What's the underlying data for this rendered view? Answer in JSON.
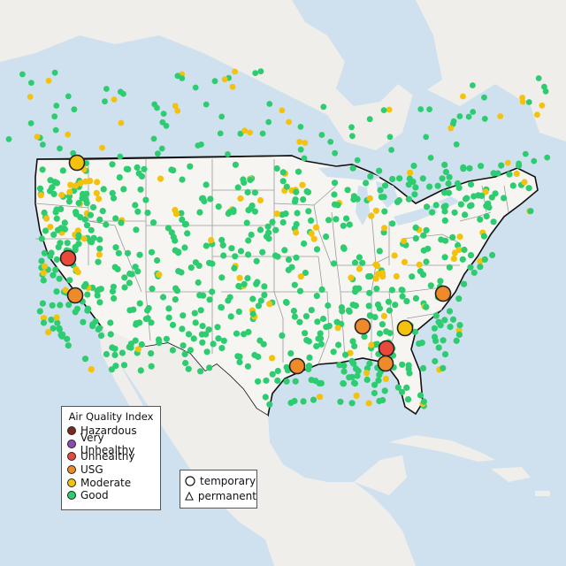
{
  "legend": {
    "title": "Air Quality Index",
    "categories": [
      {
        "label": "Hazardous",
        "color": "#7b2a1e"
      },
      {
        "label": "Very Unhealthy",
        "color": "#8e4bb0"
      },
      {
        "label": "Unhealthy",
        "color": "#e8493a"
      },
      {
        "label": "USG",
        "color": "#ef8a2a"
      },
      {
        "label": "Moderate",
        "color": "#f4c20d"
      },
      {
        "label": "Good",
        "color": "#2ecc71"
      }
    ]
  },
  "site_types": [
    {
      "label": "temporary",
      "icon": "circle-icon"
    },
    {
      "label": "permanent",
      "icon": "triangle-icon"
    }
  ],
  "colors": {
    "water": "#cfe0ef",
    "land": "#efeeea",
    "us_land": "#f6f5f1",
    "boundary": "#111111",
    "state_lines": "#9a9a9a"
  }
}
